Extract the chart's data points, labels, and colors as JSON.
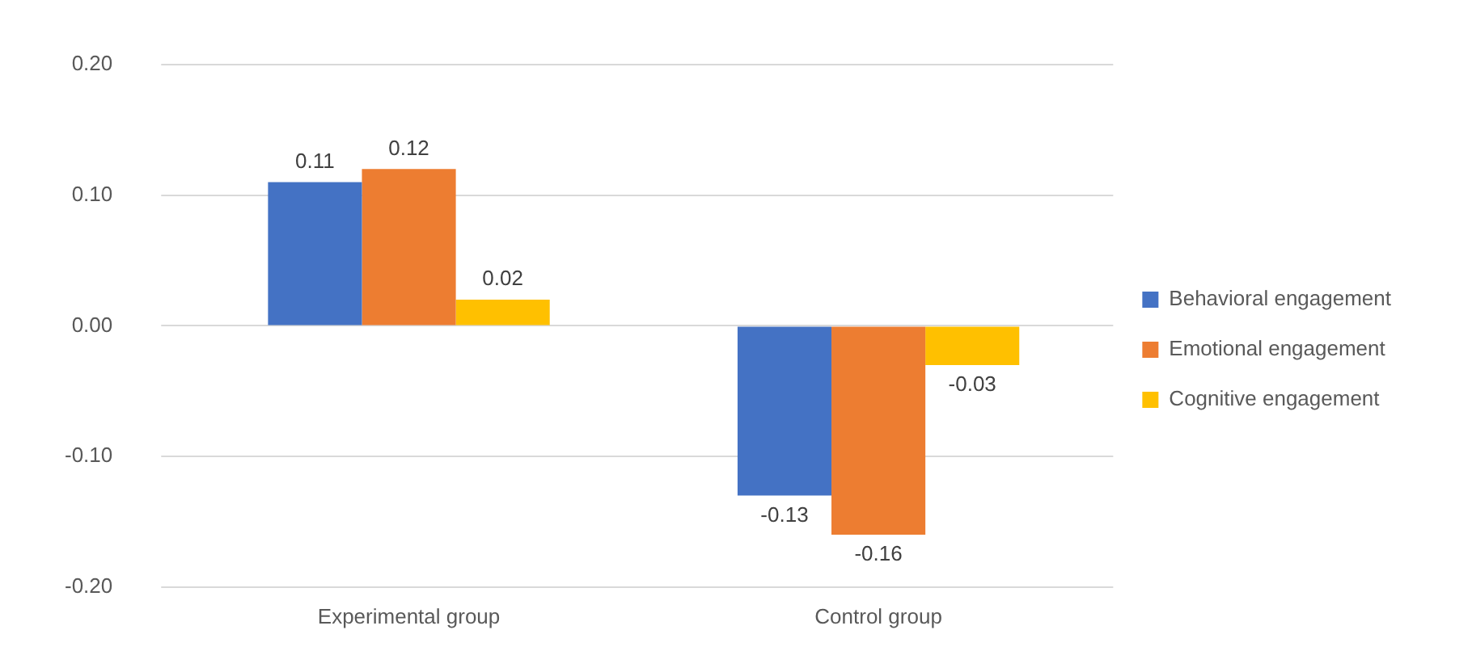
{
  "chart_data": {
    "type": "bar",
    "categories": [
      "Experimental group",
      "Control group"
    ],
    "series": [
      {
        "name": "Behavioral engagement",
        "color": "#4472c4",
        "values": [
          0.11,
          -0.13
        ]
      },
      {
        "name": "Emotional engagement",
        "color": "#ed7d31",
        "values": [
          0.12,
          -0.16
        ]
      },
      {
        "name": "Cognitive engagement",
        "color": "#ffc000",
        "values": [
          0.02,
          -0.03
        ]
      }
    ],
    "ylim": [
      -0.2,
      0.2
    ],
    "yticks": [
      {
        "value": -0.2,
        "label": "-0.20"
      },
      {
        "value": -0.1,
        "label": "-0.10"
      },
      {
        "value": 0,
        "label": "0.00"
      },
      {
        "value": 0.1,
        "label": "0.10"
      },
      {
        "value": 0.2,
        "label": "0.20"
      }
    ],
    "grid": "y",
    "legend": "right",
    "data_labels": true
  }
}
